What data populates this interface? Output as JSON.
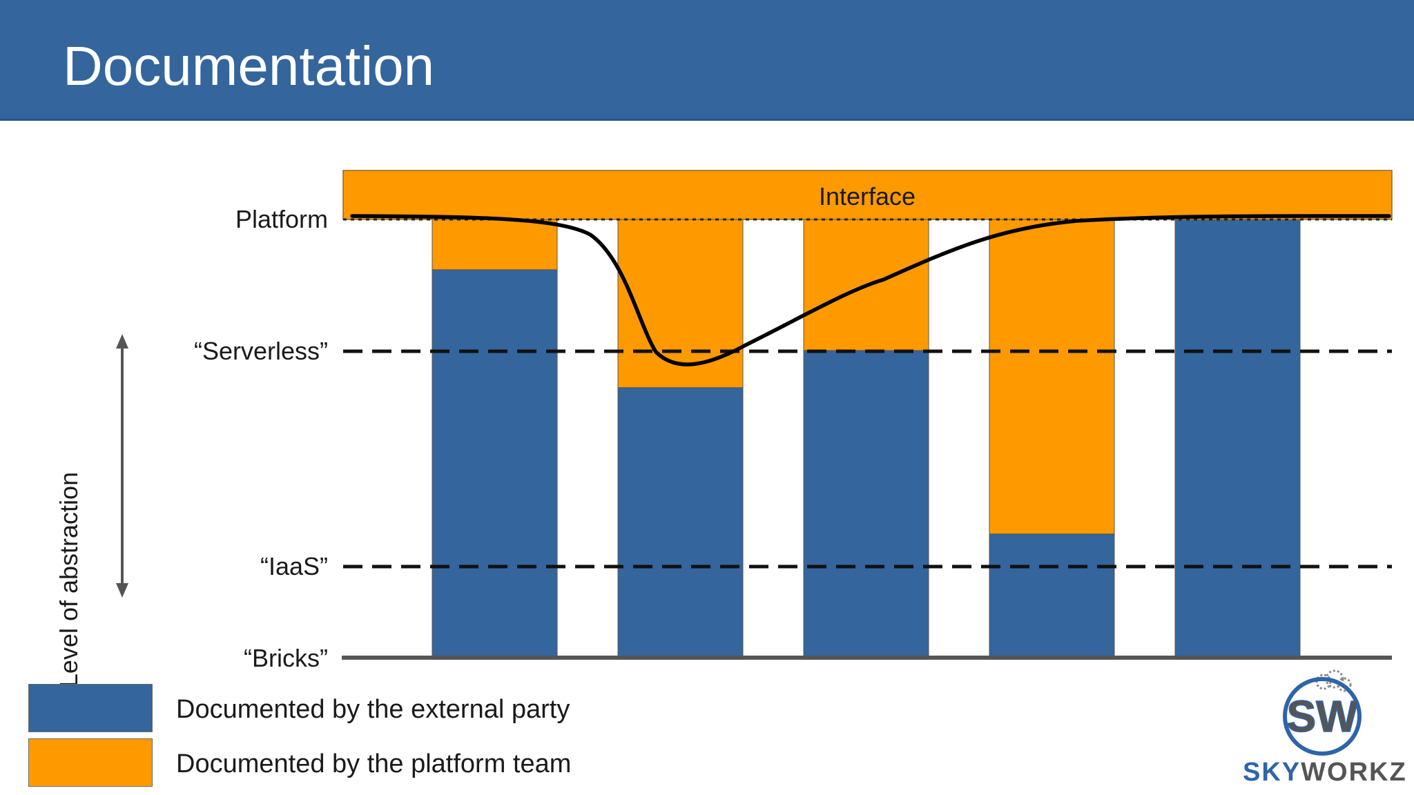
{
  "slide": {
    "title": "Documentation"
  },
  "diagram": {
    "interface_label": "Interface",
    "levels": [
      {
        "label": "Platform",
        "value": 1.0
      },
      {
        "label": "“Serverless”",
        "value": 0.7
      },
      {
        "label": "“IaaS”",
        "value": 0.2
      },
      {
        "label": "“Bricks”",
        "value": 0.0
      }
    ],
    "axis_label": "Level of abstraction",
    "bars": [
      {
        "external": 0.885,
        "platform": 0.115
      },
      {
        "external": 0.615,
        "platform": 0.385
      },
      {
        "external": 0.7,
        "platform": 0.3
      },
      {
        "external": 0.28,
        "platform": 0.72
      },
      {
        "external": 1.0,
        "platform": 0.0
      }
    ],
    "colors": {
      "external": "#34659d",
      "platform": "#fe9a00",
      "header": "#34659d",
      "logo_blue": "#2e64a8",
      "logo_gray": "#555555"
    }
  },
  "legend": [
    {
      "label": "Documented by the external party",
      "color": "#34659d"
    },
    {
      "label": "Documented by the platform team",
      "color": "#fe9a00"
    }
  ],
  "logo": {
    "mark": "SW",
    "name_part1": "SKY",
    "name_part2": "WORKZ",
    "icon": "cloud-icon"
  }
}
